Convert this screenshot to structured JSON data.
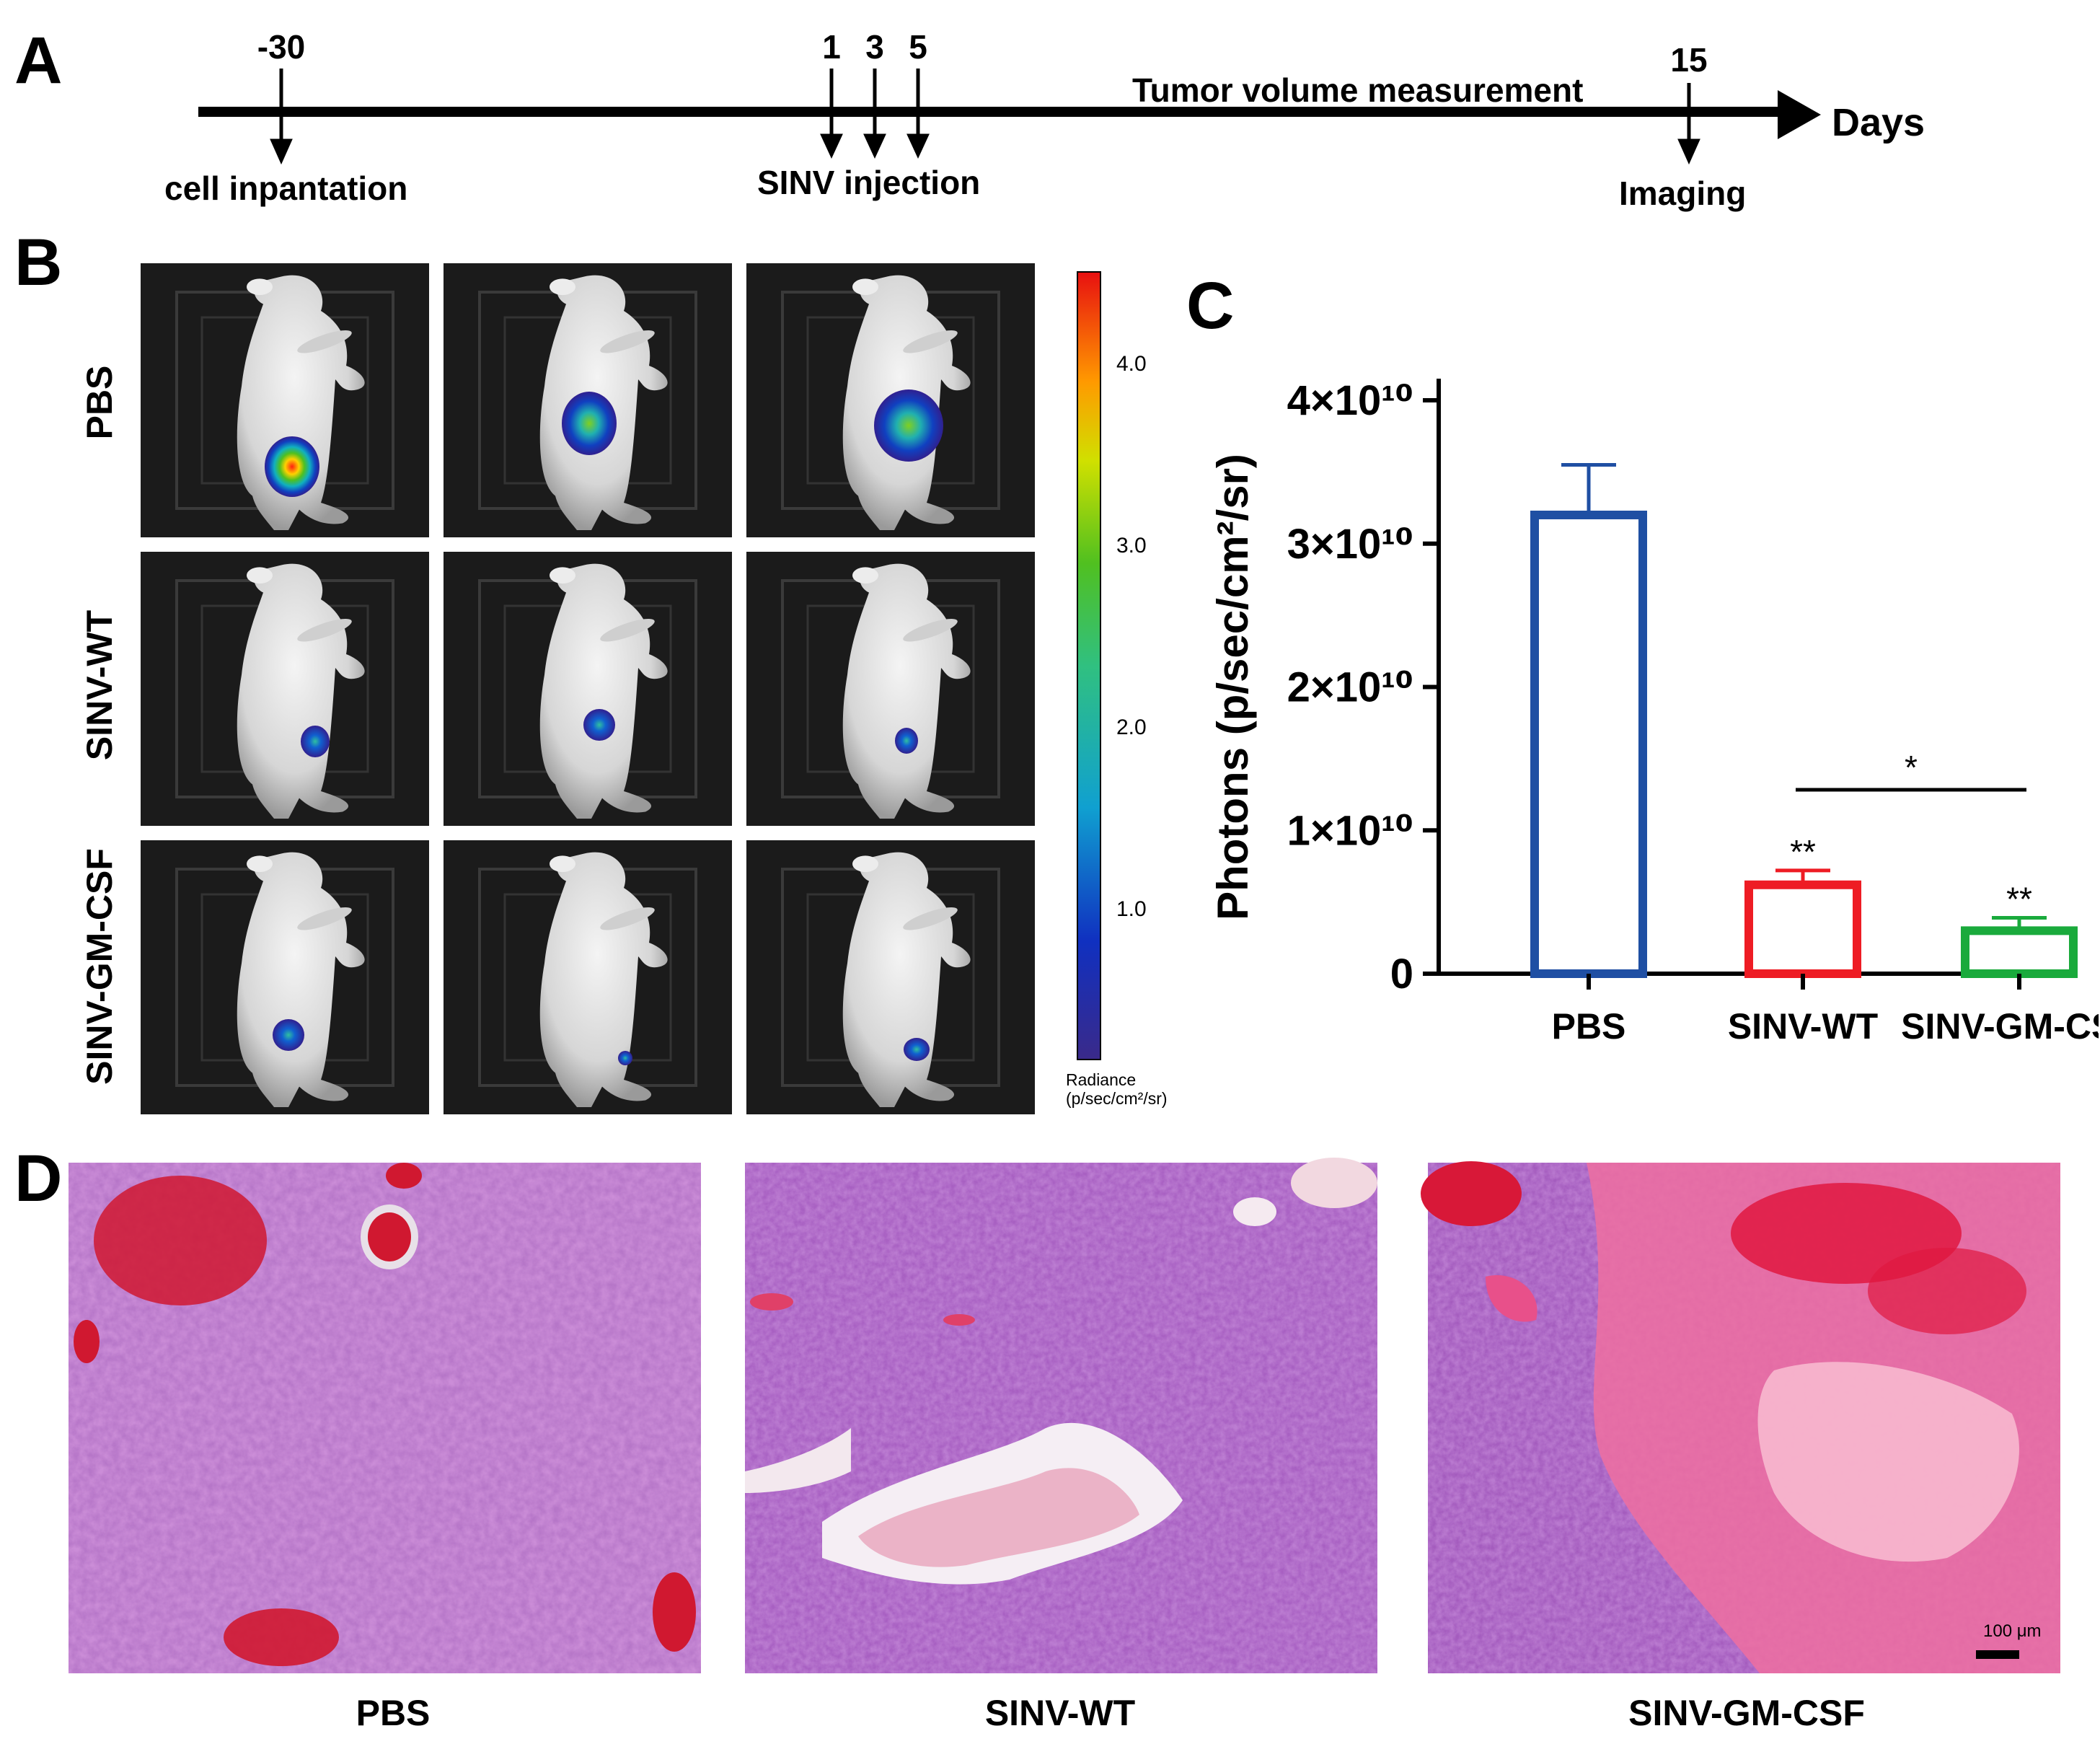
{
  "panels": {
    "a": "A",
    "b": "B",
    "c": "C",
    "d": "D"
  },
  "timeline": {
    "axis_label": "Days",
    "events": [
      {
        "day": "-30",
        "label": "cell inpantation"
      },
      {
        "day": "1",
        "label": ""
      },
      {
        "day": "3",
        "label": "SINV injection"
      },
      {
        "day": "5",
        "label": ""
      },
      {
        "day": "15",
        "label": "Imaging"
      }
    ],
    "measurement_label": "Tumor volume measurement"
  },
  "imaging": {
    "row_labels": [
      "PBS",
      "SINV-WT",
      "SINV-GM-CSF"
    ],
    "colorbar": {
      "ticks": [
        "4.0",
        "3.0",
        "2.0",
        "1.0"
      ],
      "title_line1": "Radiance",
      "title_line2": "(p/sec/cm²/sr)"
    }
  },
  "chart_data": {
    "type": "bar",
    "title": "",
    "xlabel": "",
    "ylabel": "Photons (p/sec/cm²/sr)",
    "ylim": [
      0,
      40000000000.0
    ],
    "ytick_labels": [
      "0",
      "1×10¹⁰",
      "2×10¹⁰",
      "3×10¹⁰",
      "4×10¹⁰"
    ],
    "categories": [
      "PBS",
      "SINV-WT",
      "SINV-GM-CSF"
    ],
    "values": [
      32000000000.0,
      6200000000.0,
      3000000000.0
    ],
    "errors": [
      3500000000.0,
      1000000000.0,
      900000000.0
    ],
    "colors": [
      "#1f4fa3",
      "#ee1c24",
      "#1aaa3c"
    ],
    "annotations": [
      {
        "category": "SINV-WT",
        "text": "**"
      },
      {
        "category": "SINV-GM-CSF",
        "text": "**"
      },
      {
        "between": [
          "SINV-WT",
          "SINV-GM-CSF"
        ],
        "text": "*"
      }
    ]
  },
  "histology": {
    "labels": [
      "PBS",
      "SINV-WT",
      "SINV-GM-CSF"
    ],
    "scale_bar": "100 μm"
  }
}
